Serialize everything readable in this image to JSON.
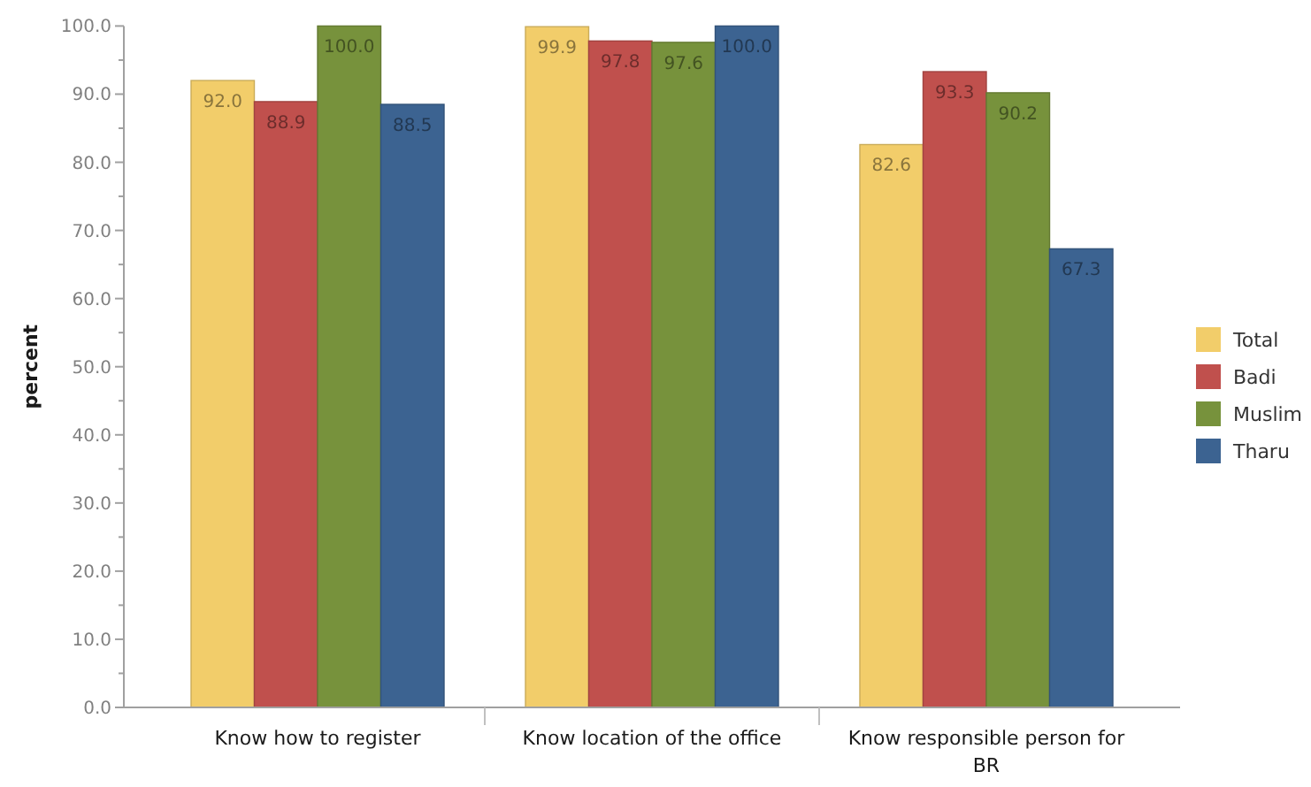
{
  "chart_data": {
    "type": "bar",
    "ylabel": "percent",
    "categories": [
      "Know how to register",
      "Know location of the office",
      "Know responsible person for BR"
    ],
    "series": [
      {
        "name": "Total",
        "color": "#f2cd6a",
        "values": [
          92.0,
          99.9,
          82.6
        ]
      },
      {
        "name": "Badi",
        "color": "#c0504d",
        "values": [
          88.9,
          97.8,
          93.3
        ]
      },
      {
        "name": "Muslim",
        "color": "#77923c",
        "values": [
          100.0,
          97.6,
          90.2
        ]
      },
      {
        "name": "Tharu",
        "color": "#3c6391",
        "values": [
          88.5,
          100.0,
          67.3
        ]
      }
    ],
    "value_labels": [
      [
        "92.0",
        "99.9",
        "82.6"
      ],
      [
        "88.9",
        "97.8",
        "93.3"
      ],
      [
        "100.0",
        "97.6",
        "90.2"
      ],
      [
        "88.5",
        "100.0",
        "67.3"
      ]
    ],
    "ylim": [
      0,
      100
    ],
    "yticks": [
      {
        "value": 0,
        "label": "0.0"
      },
      {
        "value": 5,
        "label": null
      },
      {
        "value": 10,
        "label": "10.0"
      },
      {
        "value": 15,
        "label": null
      },
      {
        "value": 20,
        "label": "20.0"
      },
      {
        "value": 25,
        "label": null
      },
      {
        "value": 30,
        "label": "30.0"
      },
      {
        "value": 35,
        "label": null
      },
      {
        "value": 40,
        "label": "40.0"
      },
      {
        "value": 45,
        "label": null
      },
      {
        "value": 50,
        "label": "50.0"
      },
      {
        "value": 55,
        "label": null
      },
      {
        "value": 60,
        "label": "60.0"
      },
      {
        "value": 65,
        "label": null
      },
      {
        "value": 70,
        "label": "70.0"
      },
      {
        "value": 75,
        "label": null
      },
      {
        "value": 80,
        "label": "80.0"
      },
      {
        "value": 85,
        "label": null
      },
      {
        "value": 90,
        "label": "90.0"
      },
      {
        "value": 95,
        "label": null
      },
      {
        "value": 100,
        "label": "100.0"
      }
    ],
    "grid": false,
    "legend": "right"
  }
}
